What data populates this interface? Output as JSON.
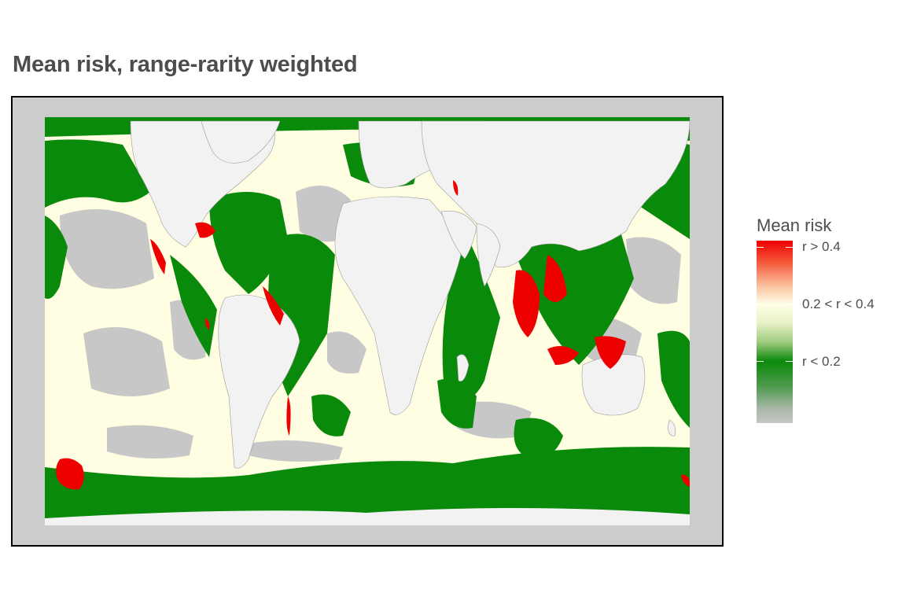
{
  "title": "Mean risk, range-rarity weighted",
  "map": {
    "description_tag": "world-map-mean-risk",
    "colors": {
      "panel_background": "#cccccc",
      "land": "#f2f2f2",
      "no_data": "#c7c7c7",
      "low_risk": "#0a8a0a",
      "mid_risk": "#fffde2",
      "high_risk": "#ee0000"
    }
  },
  "legend": {
    "title": "Mean risk",
    "labels": [
      "r > 0.4",
      "0.2 < r < 0.4",
      "r < 0.2"
    ],
    "colors": [
      "#ee0000",
      "#fffee6",
      "#0a8a0a",
      "#c6c6c6"
    ]
  }
}
